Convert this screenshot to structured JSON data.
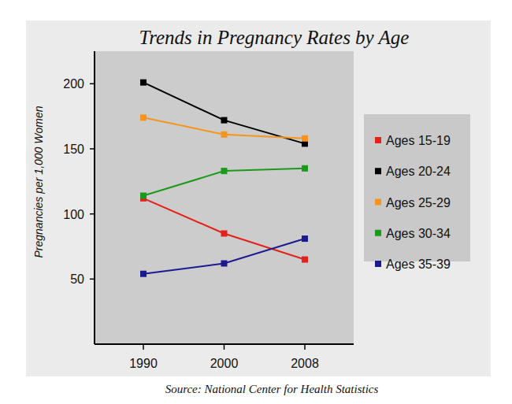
{
  "chart_data": {
    "type": "line",
    "title": "Trends in Pregnancy Rates by Age",
    "y_label": "Pregnancies per 1,000 Women",
    "source": "Source: National Center for Health Statistics",
    "categories": [
      "1990",
      "2000",
      "2008"
    ],
    "series": [
      {
        "name": "Ages 15-19",
        "color": "#e3231b",
        "values": [
          112,
          85,
          65
        ]
      },
      {
        "name": "Ages 20-24",
        "color": "#000000",
        "values": [
          201,
          172,
          154
        ]
      },
      {
        "name": "Ages 25-29",
        "color": "#f7941d",
        "values": [
          174,
          161,
          158
        ]
      },
      {
        "name": "Ages 30-34",
        "color": "#1a9a1a",
        "values": [
          114,
          133,
          135
        ]
      },
      {
        "name": "Ages 35-39",
        "color": "#1b1b8f",
        "values": [
          54,
          62,
          81
        ]
      }
    ],
    "ylim": [
      0,
      225
    ],
    "yticks": [
      50,
      100,
      150,
      200
    ],
    "grid": false,
    "legend": "right",
    "marker": "square"
  }
}
